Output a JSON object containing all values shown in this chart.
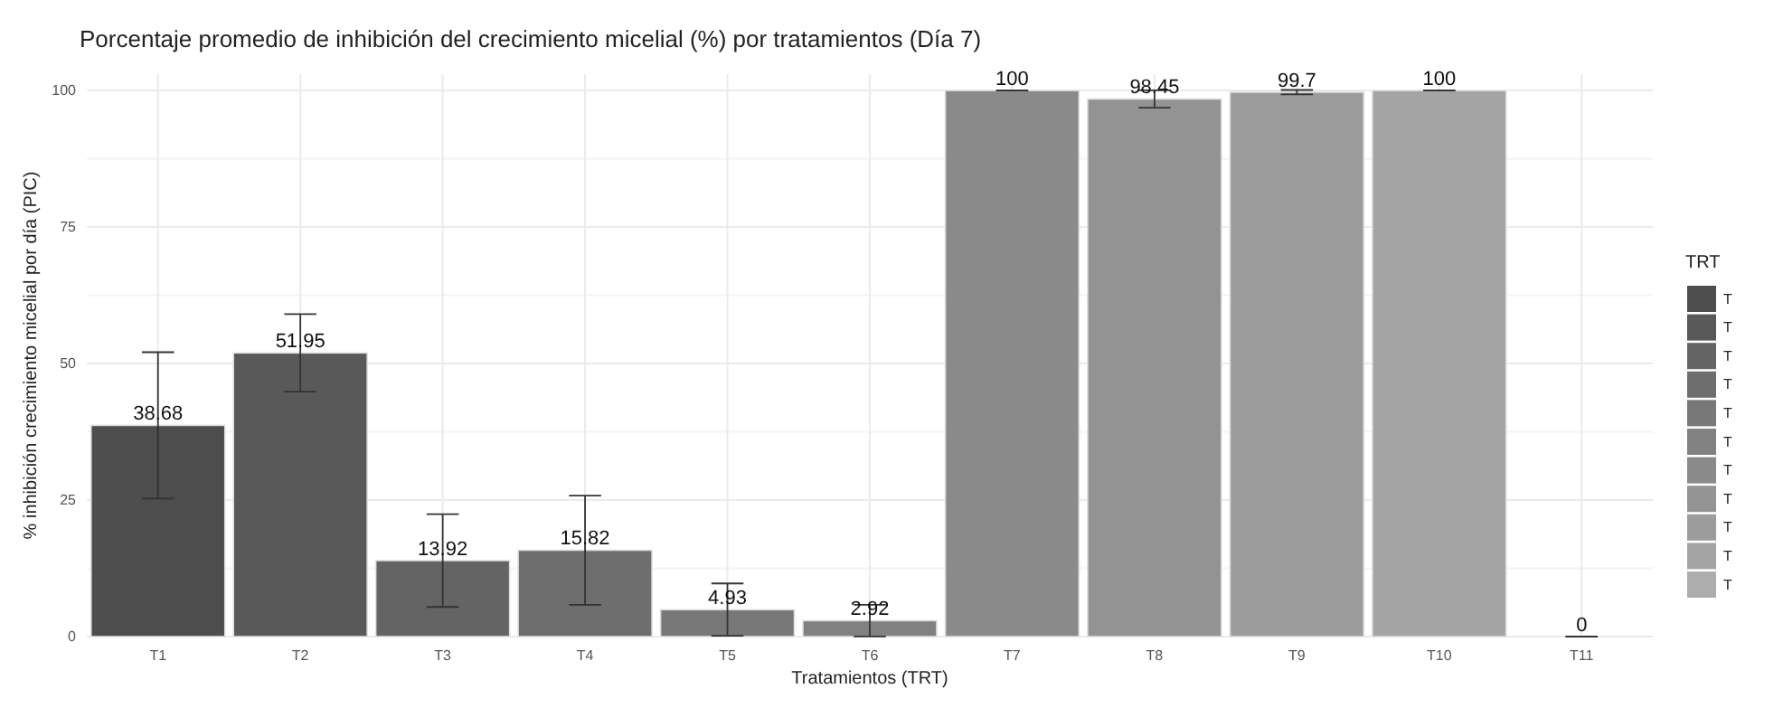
{
  "chart_data": {
    "type": "bar",
    "title": "Porcentaje promedio de inhibición del crecimiento micelial (%) por tratamientos (Día 7)",
    "xlabel": "Tratamientos (TRT)",
    "ylabel": "% inhibición crecimiento micelial por día (PIC)",
    "legend_title": "TRT",
    "legend": "right",
    "grid": true,
    "data_labels": true,
    "categories": [
      "T1",
      "T2",
      "T3",
      "T4",
      "T5",
      "T6",
      "T7",
      "T8",
      "T9",
      "T10",
      "T11"
    ],
    "ylim": [
      0,
      103
    ],
    "yticks": [
      0,
      25,
      50,
      75,
      100
    ],
    "series": [
      {
        "name": "T",
        "color": "#4d4d4d",
        "values": [
          38.68,
          null,
          null,
          null,
          null,
          null,
          null,
          null,
          null,
          null,
          null
        ],
        "errors": [
          13.4,
          null,
          null,
          null,
          null,
          null,
          null,
          null,
          null,
          null,
          null
        ]
      },
      {
        "name": "T",
        "color": "#595959",
        "values": [
          null,
          51.95,
          null,
          null,
          null,
          null,
          null,
          null,
          null,
          null,
          null
        ],
        "errors": [
          null,
          7.1,
          null,
          null,
          null,
          null,
          null,
          null,
          null,
          null,
          null
        ]
      },
      {
        "name": "T",
        "color": "#646464",
        "values": [
          null,
          null,
          13.92,
          null,
          null,
          null,
          null,
          null,
          null,
          null,
          null
        ],
        "errors": [
          null,
          null,
          8.5,
          null,
          null,
          null,
          null,
          null,
          null,
          null,
          null
        ]
      },
      {
        "name": "T",
        "color": "#6e6e6e",
        "values": [
          null,
          null,
          null,
          15.82,
          null,
          null,
          null,
          null,
          null,
          null,
          null
        ],
        "errors": [
          null,
          null,
          null,
          10,
          null,
          null,
          null,
          null,
          null,
          null,
          null
        ]
      },
      {
        "name": "T",
        "color": "#787878",
        "values": [
          null,
          null,
          null,
          null,
          4.93,
          null,
          null,
          null,
          null,
          null,
          null
        ],
        "errors": [
          null,
          null,
          null,
          null,
          4.8,
          null,
          null,
          null,
          null,
          null,
          null
        ]
      },
      {
        "name": "T",
        "color": "#818181",
        "values": [
          null,
          null,
          null,
          null,
          null,
          2.92,
          null,
          null,
          null,
          null,
          null
        ],
        "errors": [
          null,
          null,
          null,
          null,
          null,
          2.9,
          null,
          null,
          null,
          null,
          null
        ]
      },
      {
        "name": "T",
        "color": "#8a8a8a",
        "values": [
          null,
          null,
          null,
          null,
          null,
          null,
          100,
          null,
          null,
          null,
          null
        ],
        "errors": [
          null,
          null,
          null,
          null,
          null,
          null,
          0,
          null,
          null,
          null,
          null
        ]
      },
      {
        "name": "T",
        "color": "#939393",
        "values": [
          null,
          null,
          null,
          null,
          null,
          null,
          null,
          98.45,
          null,
          null,
          null
        ],
        "errors": [
          null,
          null,
          null,
          null,
          null,
          null,
          null,
          1.6,
          null,
          null,
          null
        ]
      },
      {
        "name": "T",
        "color": "#9c9c9c",
        "values": [
          null,
          null,
          null,
          null,
          null,
          null,
          null,
          null,
          99.7,
          null,
          null
        ],
        "errors": [
          null,
          null,
          null,
          null,
          null,
          null,
          null,
          null,
          0.4,
          null,
          null
        ]
      },
      {
        "name": "T",
        "color": "#a4a4a4",
        "values": [
          null,
          null,
          null,
          null,
          null,
          null,
          null,
          null,
          null,
          100,
          null
        ],
        "errors": [
          null,
          null,
          null,
          null,
          null,
          null,
          null,
          null,
          null,
          0,
          null
        ]
      },
      {
        "name": "T",
        "color": "#adadad",
        "values": [
          null,
          null,
          null,
          null,
          null,
          null,
          null,
          null,
          null,
          null,
          0
        ],
        "errors": [
          null,
          null,
          null,
          null,
          null,
          null,
          null,
          null,
          null,
          null,
          0
        ]
      }
    ]
  }
}
